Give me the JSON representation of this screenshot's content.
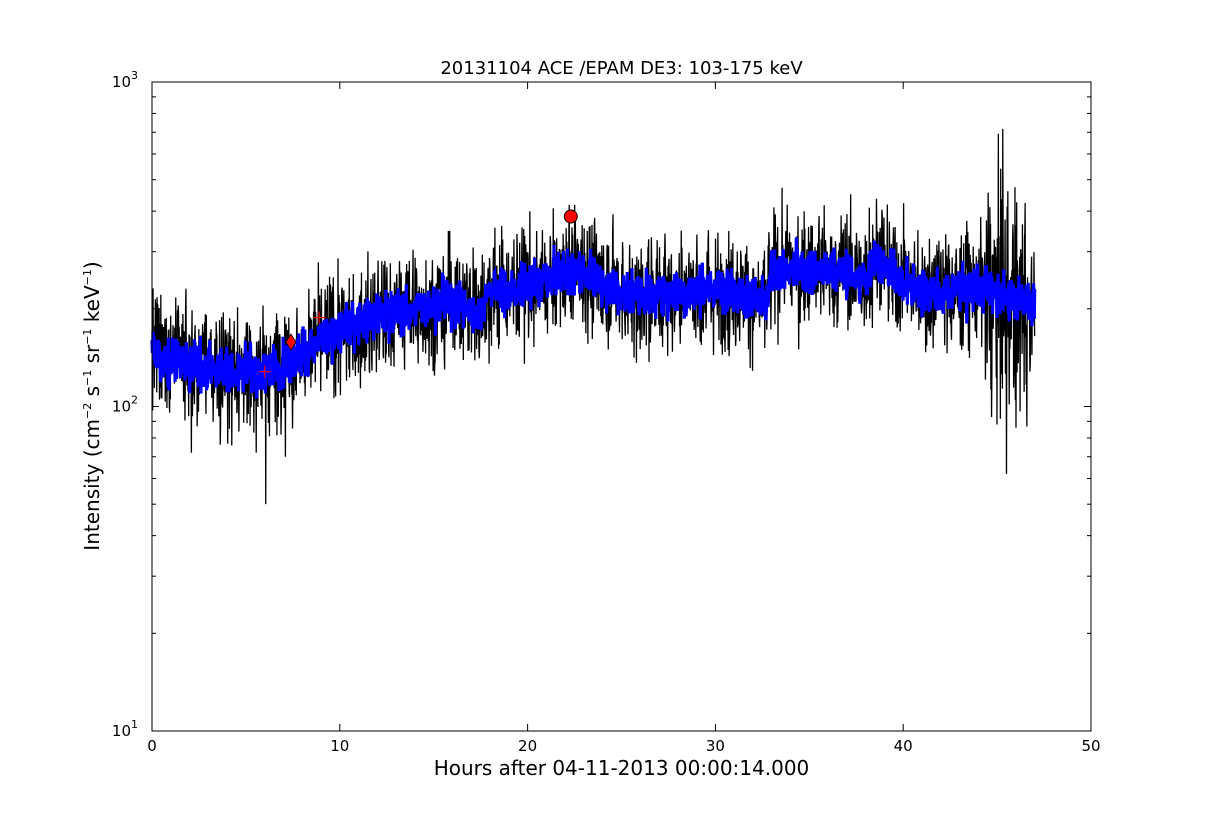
{
  "chart_data": {
    "type": "line",
    "title": "20131104 ACE /EPAM DE3: 103-175 keV",
    "xlabel": "Hours after 04-11-2013 00:00:14.000",
    "ylabel": {
      "prefix": "Intensity (cm",
      "exp1": "−2",
      "mid1": " s",
      "exp2": "−1",
      "mid2": " sr",
      "exp3": "−1",
      "mid3": " keV",
      "exp4": "−1",
      "suffix": ")"
    },
    "xlim": [
      0,
      50
    ],
    "ylim": [
      10,
      1000
    ],
    "yscale": "log",
    "grid": false,
    "x_ticks": [
      {
        "value": 0,
        "label": "0"
      },
      {
        "value": 10,
        "label": "10"
      },
      {
        "value": 20,
        "label": "20"
      },
      {
        "value": 30,
        "label": "30"
      },
      {
        "value": 40,
        "label": "40"
      },
      {
        "value": 50,
        "label": "50"
      }
    ],
    "y_ticks": [
      {
        "value": 10,
        "base": "10",
        "exp": "1"
      },
      {
        "value": 100,
        "base": "10",
        "exp": "2"
      },
      {
        "value": 1000,
        "base": "10",
        "exp": "3"
      }
    ],
    "series": [
      {
        "role": "raw",
        "color": "#000000",
        "x_end": 47,
        "trend": [
          [
            0,
            150
          ],
          [
            1,
            140
          ],
          [
            2,
            135
          ],
          [
            3,
            132
          ],
          [
            4,
            130
          ],
          [
            5,
            128
          ],
          [
            6,
            128
          ],
          [
            7,
            135
          ],
          [
            8,
            145
          ],
          [
            9,
            160
          ],
          [
            10,
            170
          ],
          [
            11,
            180
          ],
          [
            12,
            190
          ],
          [
            13,
            195
          ],
          [
            14,
            200
          ],
          [
            15,
            205
          ],
          [
            16,
            210
          ],
          [
            17,
            200
          ],
          [
            17.5,
            195
          ],
          [
            18,
            230
          ],
          [
            19,
            225
          ],
          [
            20,
            235
          ],
          [
            21,
            245
          ],
          [
            22,
            265
          ],
          [
            23,
            260
          ],
          [
            24,
            240
          ],
          [
            25,
            225
          ],
          [
            26,
            220
          ],
          [
            27,
            222
          ],
          [
            28,
            225
          ],
          [
            29,
            228
          ],
          [
            30,
            228
          ],
          [
            31,
            225
          ],
          [
            32,
            215
          ],
          [
            32.7,
            205
          ],
          [
            33,
            260
          ],
          [
            34,
            265
          ],
          [
            35,
            262
          ],
          [
            36,
            265
          ],
          [
            37,
            260
          ],
          [
            38,
            240
          ],
          [
            38.5,
            290
          ],
          [
            39,
            270
          ],
          [
            40,
            245
          ],
          [
            41,
            225
          ],
          [
            42,
            225
          ],
          [
            43,
            230
          ],
          [
            44,
            230
          ],
          [
            45,
            225
          ],
          [
            46,
            215
          ],
          [
            47,
            205
          ]
        ],
        "dips": [
          {
            "x": 6.05,
            "value": 50
          },
          {
            "x": 45.5,
            "value": 62
          },
          {
            "x": 2.1,
            "value": 72
          },
          {
            "x": 7.1,
            "value": 70
          },
          {
            "x": 45.0,
            "value": 88
          },
          {
            "x": 46.0,
            "value": 86
          }
        ],
        "spikes": [
          {
            "x": 38.2,
            "value": 410
          },
          {
            "x": 37.0,
            "value": 392
          },
          {
            "x": 22.2,
            "value": 350
          }
        ]
      },
      {
        "role": "smoothed",
        "color": "#0000ff",
        "x_end": 47
      }
    ],
    "markers": [
      {
        "shape": "circle",
        "x": 22.3,
        "value": 385,
        "color": "#ff0000"
      },
      {
        "shape": "diamond",
        "x": 7.4,
        "value": 158,
        "color": "#ff0000"
      },
      {
        "shape": "plus",
        "x": 6.0,
        "value": 128,
        "color": "#ff0000"
      },
      {
        "shape": "plus",
        "x": 8.9,
        "value": 188,
        "color": "#ff0000"
      }
    ]
  }
}
